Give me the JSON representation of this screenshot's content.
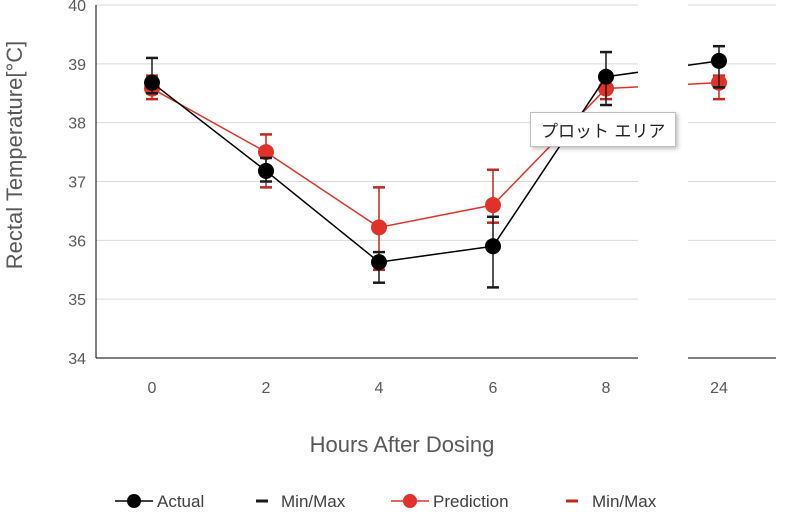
{
  "chart_data": {
    "type": "line",
    "xlabel": "Hours After Dosing",
    "ylabel": "Rectal Temperature[°C]",
    "categories": [
      "0",
      "2",
      "4",
      "6",
      "8",
      "24"
    ],
    "ylim": [
      34,
      40
    ],
    "yticks": [
      "34",
      "35",
      "36",
      "37",
      "38",
      "39",
      "40"
    ],
    "grid": true,
    "axis_break_after": "8",
    "legend_position": "bottom",
    "series": [
      {
        "name": "Actual",
        "color": "#000000",
        "values": [
          38.68,
          37.18,
          35.63,
          35.9,
          38.78,
          39.05
        ],
        "min": [
          38.5,
          37.0,
          35.28,
          35.2,
          38.3,
          38.6
        ],
        "max": [
          39.1,
          37.4,
          35.8,
          36.4,
          39.2,
          39.3
        ]
      },
      {
        "name": "Prediction",
        "color": "#e0322a",
        "values": [
          38.58,
          37.5,
          36.22,
          36.6,
          38.58,
          38.68
        ],
        "min": [
          38.4,
          36.9,
          35.5,
          36.3,
          38.4,
          38.4
        ],
        "max": [
          38.8,
          37.8,
          36.9,
          37.2,
          38.8,
          38.8
        ]
      }
    ],
    "legend": [
      "Actual",
      "Min/Max",
      "Prediction",
      "Min/Max"
    ]
  },
  "tooltip": {
    "label": "プロット エリア"
  }
}
